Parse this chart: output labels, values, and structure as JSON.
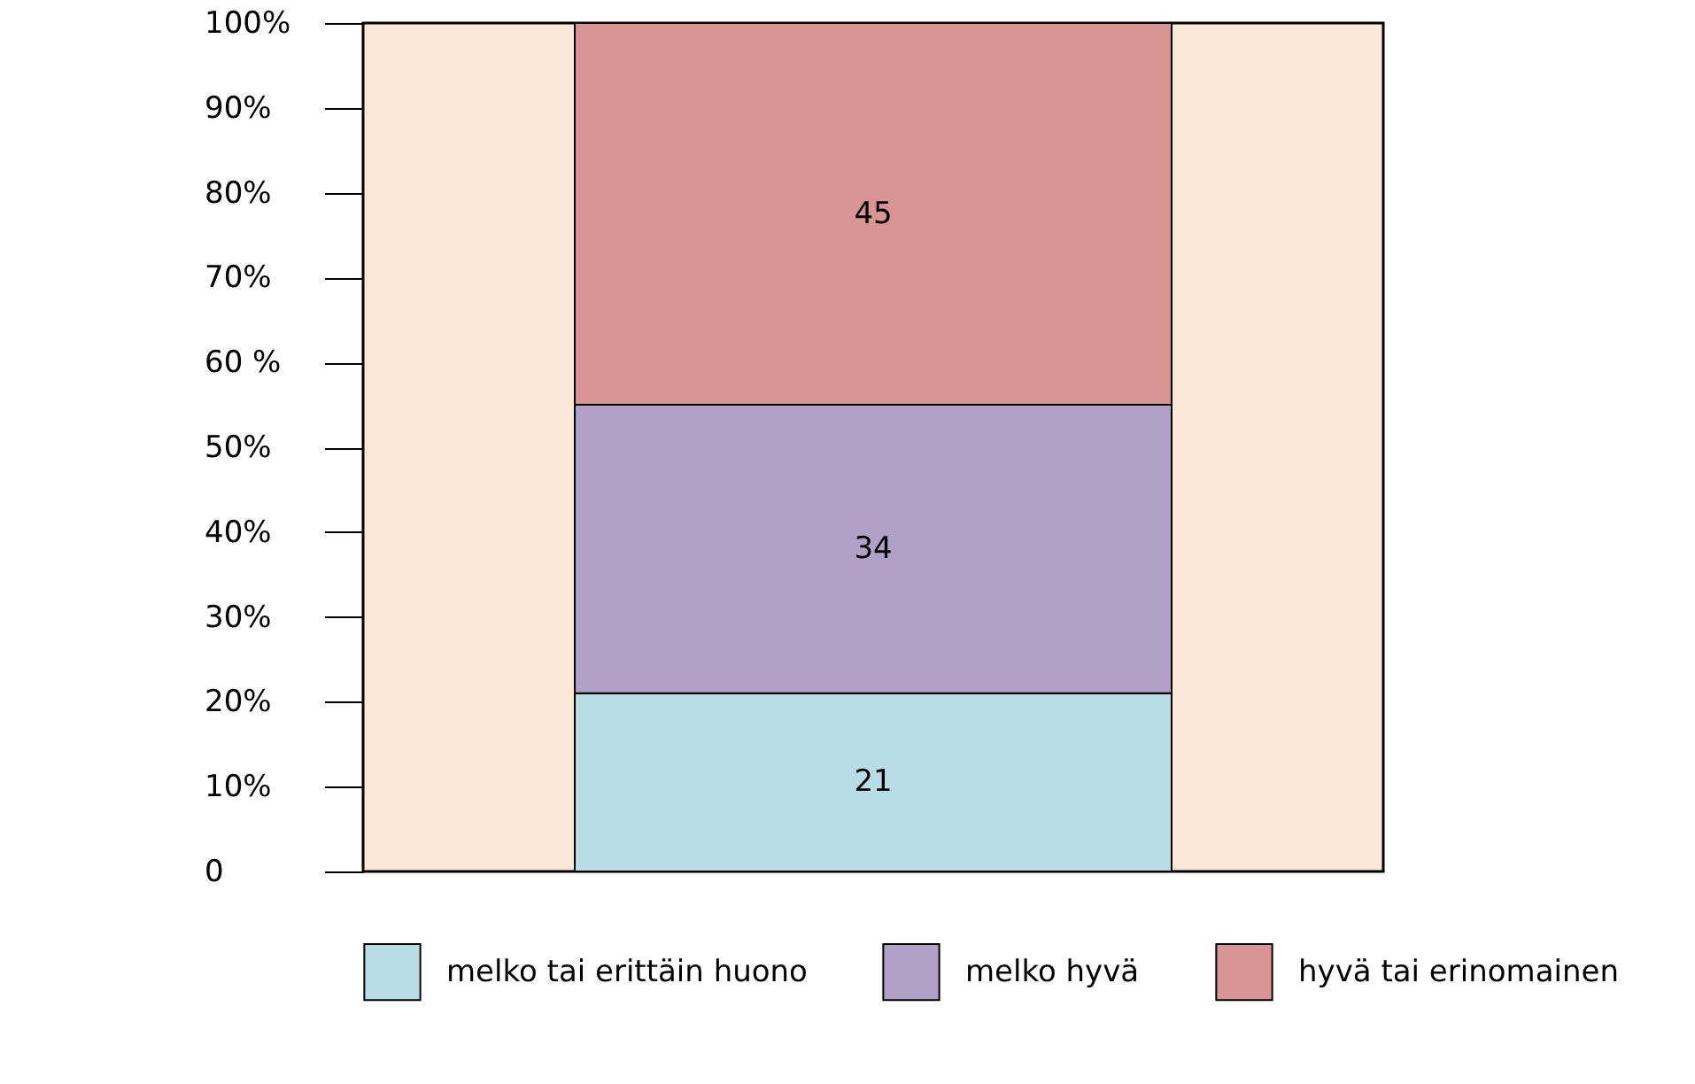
{
  "chart_data": {
    "type": "bar",
    "stacked": true,
    "categories": [
      null
    ],
    "series": [
      {
        "name": "melko tai erittäin huono",
        "color": "#b9dde6",
        "values": [
          21
        ]
      },
      {
        "name": "melko hyvä",
        "color": "#b1a0c8",
        "values": [
          34
        ]
      },
      {
        "name": "hyvä tai erinomainen",
        "color": "#d99593",
        "values": [
          45
        ]
      }
    ],
    "ylim": [
      0,
      100
    ],
    "yticks": [
      {
        "value": 0,
        "label": "0"
      },
      {
        "value": 10,
        "label": "10%"
      },
      {
        "value": 20,
        "label": "20%"
      },
      {
        "value": 30,
        "label": "30%"
      },
      {
        "value": 40,
        "label": "40%"
      },
      {
        "value": 50,
        "label": "50%"
      },
      {
        "value": 60,
        "label": "60 %"
      },
      {
        "value": 70,
        "label": "70%"
      },
      {
        "value": 80,
        "label": "80%"
      },
      {
        "value": 90,
        "label": "90%"
      },
      {
        "value": 100,
        "label": "100%"
      }
    ],
    "tick_labels": "y",
    "grid": false,
    "legend": "bottom",
    "data_labels": true
  }
}
